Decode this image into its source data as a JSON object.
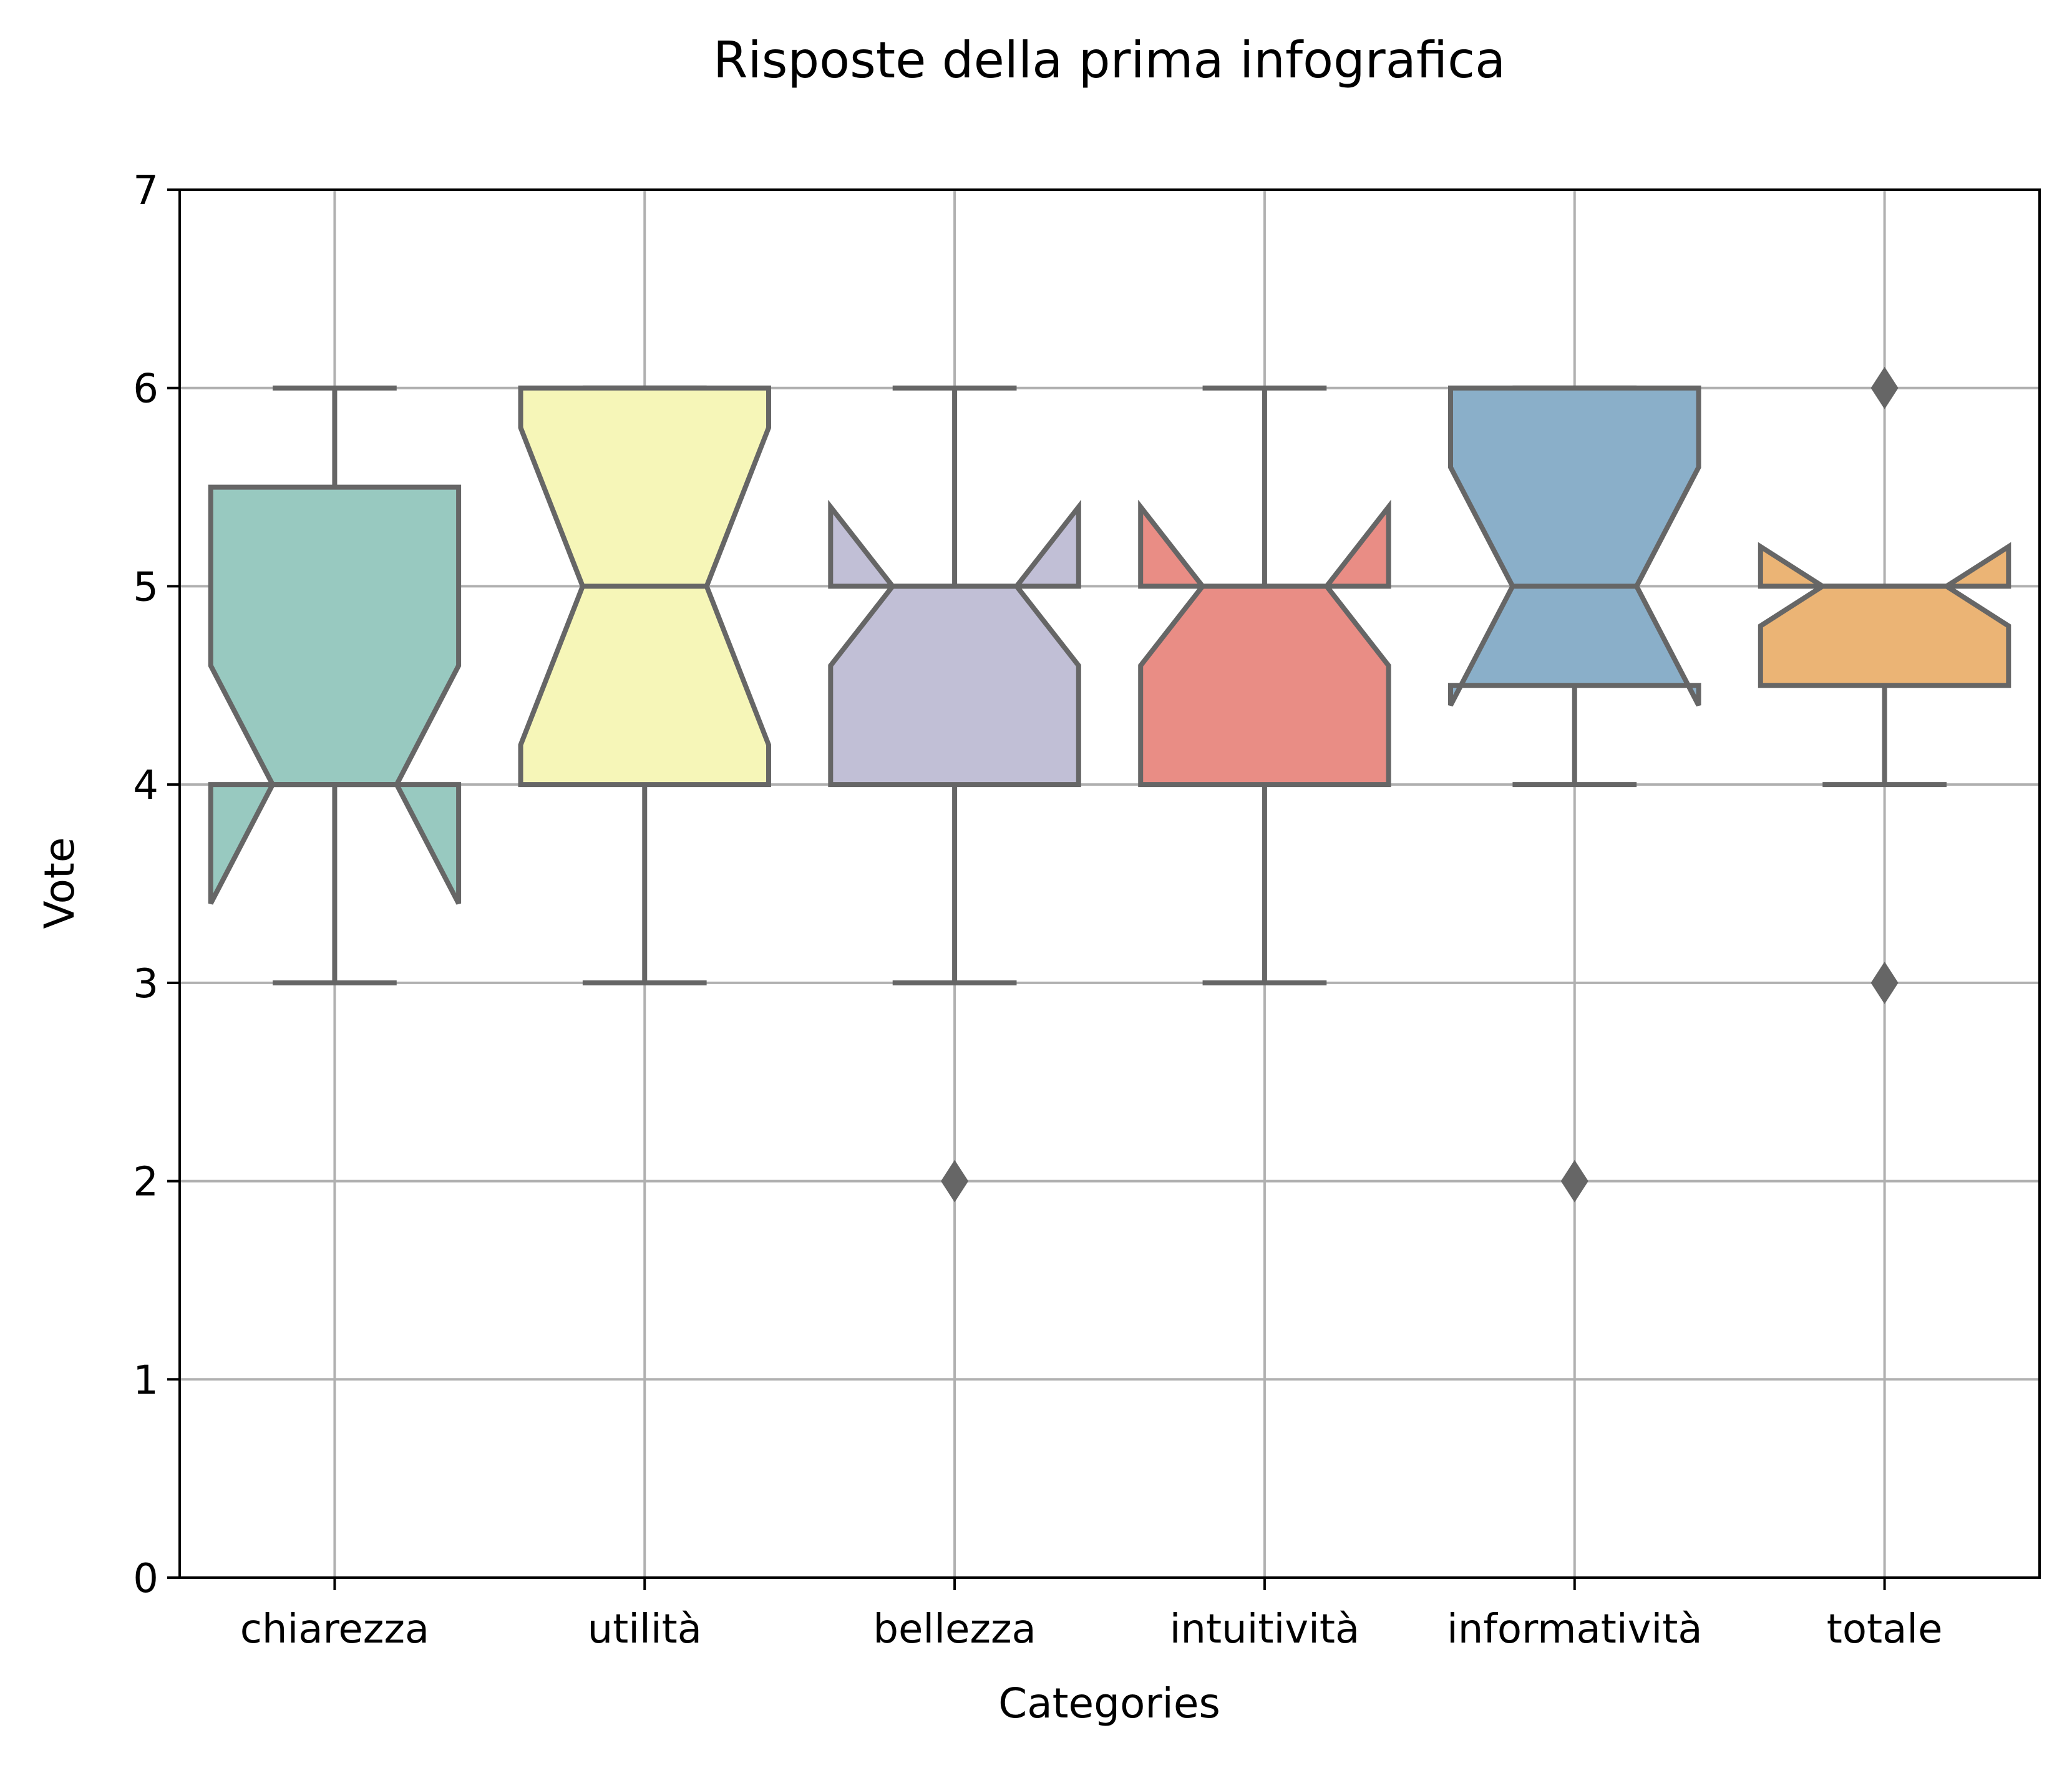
{
  "chart_data": {
    "type": "boxplot",
    "notched": true,
    "title": "Risposte della prima infografica",
    "xlabel": "Categories",
    "ylabel": "Vote",
    "ylim": [
      0,
      7
    ],
    "yticks": [
      "0",
      "1",
      "2",
      "3",
      "4",
      "5",
      "6",
      "7"
    ],
    "grid": true,
    "categories": [
      "chiarezza",
      "utilità",
      "bellezza",
      "intuitività",
      "informatività",
      "totale"
    ],
    "boxes": [
      {
        "name": "chiarezza",
        "color": "#98C9C0",
        "whisker_low": 3,
        "q1": 4,
        "median": 4,
        "q3": 5.5,
        "whisker_high": 6,
        "notch_low": 3.4,
        "notch_high": 4.6,
        "outliers": []
      },
      {
        "name": "utilità",
        "color": "#F6F6B8",
        "whisker_low": 3,
        "q1": 4,
        "median": 5,
        "q3": 6,
        "whisker_high": 6,
        "notch_low": 4.2,
        "notch_high": 5.8,
        "outliers": []
      },
      {
        "name": "bellezza",
        "color": "#C1BFD6",
        "whisker_low": 3,
        "q1": 4,
        "median": 5,
        "q3": 5,
        "whisker_high": 6,
        "notch_low": 4.6,
        "notch_high": 5.4,
        "outliers": [
          2
        ]
      },
      {
        "name": "intuitività",
        "color": "#E98D85",
        "whisker_low": 3,
        "q1": 4,
        "median": 5,
        "q3": 5,
        "whisker_high": 6,
        "notch_low": 4.6,
        "notch_high": 5.4,
        "outliers": []
      },
      {
        "name": "informatività",
        "color": "#8AAFC9",
        "whisker_low": 4,
        "q1": 4.5,
        "median": 5,
        "q3": 6,
        "whisker_high": 6,
        "notch_low": 4.4,
        "notch_high": 5.6,
        "outliers": [
          2
        ]
      },
      {
        "name": "totale",
        "color": "#EBB475",
        "whisker_low": 4,
        "q1": 4.5,
        "median": 5,
        "q3": 5,
        "whisker_high": 5,
        "notch_low": 4.8,
        "notch_high": 5.2,
        "outliers": [
          3,
          6
        ]
      }
    ],
    "line_color": "#666666",
    "grid_color": "#B0B0B0"
  }
}
